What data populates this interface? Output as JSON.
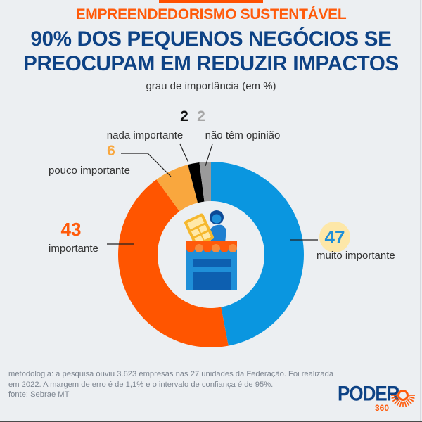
{
  "header": {
    "kicker": "EMPREENDEDORISMO SUSTENTÁVEL",
    "headline_line1": "90% DOS PEQUENOS NEGÓCIOS SE",
    "headline_line2": "PREOCUPAM EM REDUZIR IMPACTOS",
    "subtitle": "grau de importância (em %)"
  },
  "chart_data": {
    "type": "pie",
    "variant": "donut",
    "title": "90% DOS PEQUENOS NEGÓCIOS SE PREOCUPAM EM REDUZIR IMPACTOS",
    "subtitle": "grau de importância (em %)",
    "unit": "%",
    "start": "top",
    "direction": "clockwise",
    "slices": [
      {
        "label": "muito importante",
        "value": 47,
        "color": "#0a96e0",
        "value_color": "#1f8fd8",
        "highlight": "#fde7a8"
      },
      {
        "label": "importante",
        "value": 43,
        "color": "#ff5500",
        "value_color": "#ff5a0a"
      },
      {
        "label": "pouco importante",
        "value": 6,
        "color": "#f9a73e",
        "value_color": "#f9a73e"
      },
      {
        "label": "nada importante",
        "value": 2,
        "color": "#000000",
        "value_color": "#111111"
      },
      {
        "label": "não têm opinião",
        "value": 2,
        "color": "#9a9a9a",
        "value_color": "#a6a6a6"
      }
    ]
  },
  "center_icon": "shop-with-person-and-calculator-icon",
  "footer": {
    "methodology": "metodologia: a pesquisa ouviu 3.623 empresas nas 27 unidades da Federação. Foi realizada em 2022. A margem de erro é de 1,1% e o intervalo de confiança é de 95%.",
    "source": "fonte: Sebrae MT"
  },
  "logo": {
    "brand": "PODER",
    "sub": "360",
    "brand_color": "#0d4285",
    "accent_color": "#ff5a0a"
  }
}
